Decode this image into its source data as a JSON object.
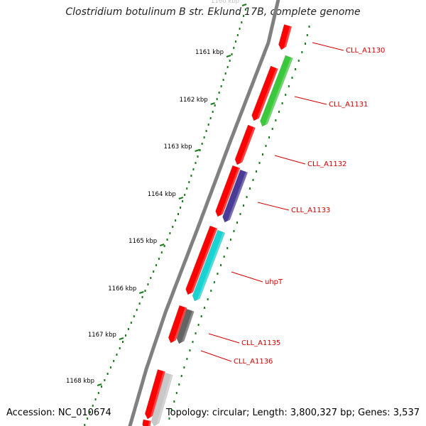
{
  "title": "Clostridium botulinum B str. Eklund 17B, complete genome",
  "footer": {
    "accession": "Accession: NC_010674",
    "summary": "Topology: circular; Length: 3,800,327 bp; Genes: 3,537"
  },
  "colors": {
    "backbone": "#808080",
    "tick": "#1a7a1a",
    "cds": "#ff0000",
    "label": "#d00000"
  },
  "kbp_labels": [
    "1160 kbp",
    "1161 kbp",
    "1162 kbp",
    "1163 kbp",
    "1164 kbp",
    "1165 kbp",
    "1166 kbp",
    "1167 kbp",
    "1168 kbp"
  ],
  "genes": [
    {
      "name": "CLL_A1130",
      "color": "#ff0000"
    },
    {
      "name": "CLL_A1131",
      "color": "#3cc83c"
    },
    {
      "name": "CLL_A1132",
      "color": "#ff0000"
    },
    {
      "name": "CLL_A1133",
      "color": "#4a3c96"
    },
    {
      "name": "uhpT",
      "color": "#19d2d2"
    },
    {
      "name": "CLL_A1135",
      "color": "#646464"
    },
    {
      "name": "CLL_A1136",
      "color": "#c8c8c8"
    }
  ]
}
